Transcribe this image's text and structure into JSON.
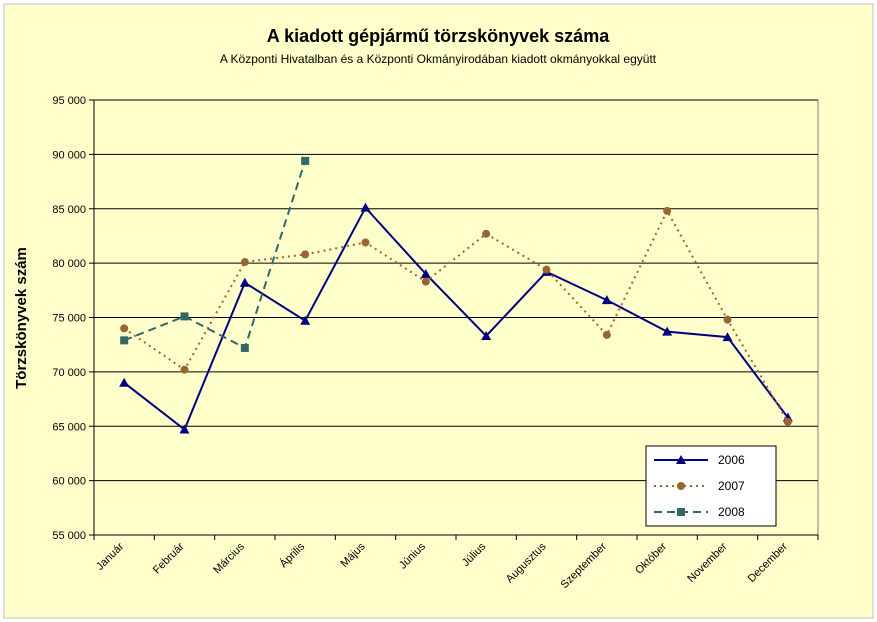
{
  "chart_data": {
    "type": "line",
    "title": "A  kiadott gépjármű  törzskönyvek száma",
    "subtitle": "A Központi Hivatalban és a Központi Okmányirodában kiadott okmányokkal együtt",
    "xlabel": "",
    "ylabel": "Törzskönyvek szám",
    "ylim": [
      55000,
      95000
    ],
    "ytick_step": 5000,
    "ytick_labels": [
      "55 000",
      "60 000",
      "65 000",
      "70 000",
      "75 000",
      "80 000",
      "85 000",
      "90 000",
      "95 000"
    ],
    "grid": true,
    "legend_position": "bottom-right",
    "categories": [
      "Január",
      "Február",
      "Március",
      "Április",
      "Május",
      "Június",
      "Július",
      "Augusztus",
      "Szeptember",
      "Október",
      "November",
      "December"
    ],
    "series": [
      {
        "name": "2006",
        "color": "#000080",
        "line_style": "solid",
        "marker": "triangle",
        "values": [
          69000,
          64700,
          78200,
          74700,
          85100,
          79000,
          73300,
          79200,
          76600,
          73700,
          73200,
          65800
        ]
      },
      {
        "name": "2007",
        "color": "#996633",
        "line_style": "dotted",
        "marker": "circle",
        "values": [
          74000,
          70200,
          80100,
          80800,
          81900,
          78300,
          82700,
          79400,
          73400,
          84800,
          74800,
          65400
        ]
      },
      {
        "name": "2008",
        "color": "#336666",
        "line_style": "dashed",
        "marker": "square",
        "values": [
          72900,
          75100,
          72200,
          89400,
          null,
          null,
          null,
          null,
          null,
          null,
          null,
          null
        ]
      }
    ]
  },
  "colors": {
    "outer_background": "#FFFFCC",
    "plot_background": "#FFFFCC",
    "gridline": "#000000"
  }
}
